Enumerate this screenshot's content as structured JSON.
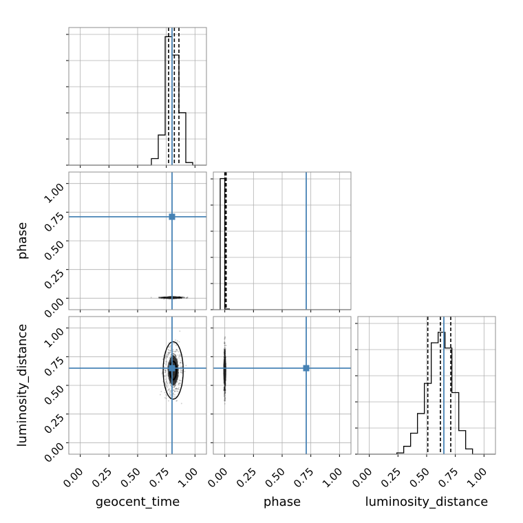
{
  "chart_data": {
    "type": "corner",
    "parameters": [
      "geocent_time",
      "phase",
      "luminosity_distance"
    ],
    "axis_range": [
      -0.1,
      1.1
    ],
    "ticks": [
      0.0,
      0.25,
      0.5,
      0.75,
      1.0
    ],
    "tick_labels": [
      "0.00",
      "0.25",
      "0.50",
      "0.75",
      "1.00"
    ],
    "grid": true,
    "colors": {
      "truth": "#4682b4",
      "hist": "#000000",
      "grid": "#b0b0b0",
      "frame": "#8c8c8c"
    },
    "truths": {
      "geocent_time": 0.8,
      "phase": 0.71,
      "luminosity_distance": 0.65
    },
    "histograms": {
      "geocent_time": {
        "bin_edges": [
          0.62,
          0.68,
          0.74,
          0.8,
          0.86,
          0.92,
          0.98
        ],
        "counts": [
          0.5,
          2.3,
          9.8,
          8.4,
          4.0,
          0.2
        ],
        "quantiles": [
          0.77,
          0.82,
          0.86
        ],
        "y_max": 10.5
      },
      "phase": {
        "bin_edges": [
          -0.04,
          0.0,
          0.04,
          0.08,
          0.12
        ],
        "counts": [
          10.0,
          0.05,
          0.0,
          0.0
        ],
        "quantiles": [
          0.0,
          0.006,
          0.012
        ],
        "y_max": 10.5
      },
      "luminosity_distance": {
        "bin_edges": [
          0.24,
          0.3,
          0.36,
          0.42,
          0.48,
          0.54,
          0.6,
          0.66,
          0.72,
          0.78,
          0.84,
          0.9
        ],
        "counts": [
          0.1,
          0.6,
          1.6,
          3.1,
          5.4,
          8.5,
          9.3,
          8.1,
          4.7,
          1.8,
          0.4
        ],
        "quantiles": [
          0.51,
          0.62,
          0.71
        ],
        "y_max": 10.5
      }
    },
    "scatter": {
      "geocent_time_phase": {
        "x_center": 0.8,
        "y_center": 0.005,
        "x_spread": 0.045,
        "y_spread": 0.003
      },
      "geocent_time_luminosity_distance": {
        "x_center": 0.81,
        "y_center": 0.63,
        "x_spread": 0.035,
        "y_spread": 0.1
      },
      "phase_luminosity_distance": {
        "x_center": 0.0,
        "y_center": 0.63,
        "x_spread": 0.003,
        "y_spread": 0.1
      }
    }
  }
}
